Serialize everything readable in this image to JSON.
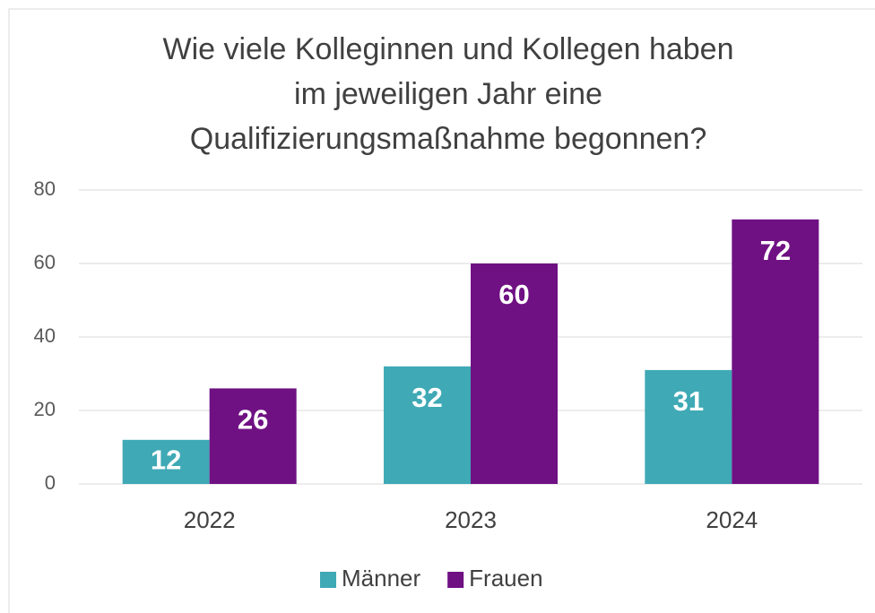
{
  "chart_data": {
    "type": "bar",
    "title": [
      "Wie viele Kolleginnen und Kollegen haben",
      "im jeweiligen Jahr eine",
      "Qualifizierungsmaßnahme begonnen?"
    ],
    "categories": [
      "2022",
      "2023",
      "2024"
    ],
    "series": [
      {
        "name": "Männer",
        "color": "#3fa9b5",
        "values": [
          12,
          32,
          31
        ]
      },
      {
        "name": "Frauen",
        "color": "#6f1183",
        "values": [
          26,
          60,
          72
        ]
      }
    ],
    "ylim": [
      0,
      80
    ],
    "yticks": [
      0,
      20,
      40,
      60,
      80
    ],
    "grid": true,
    "legend": "bottom"
  }
}
